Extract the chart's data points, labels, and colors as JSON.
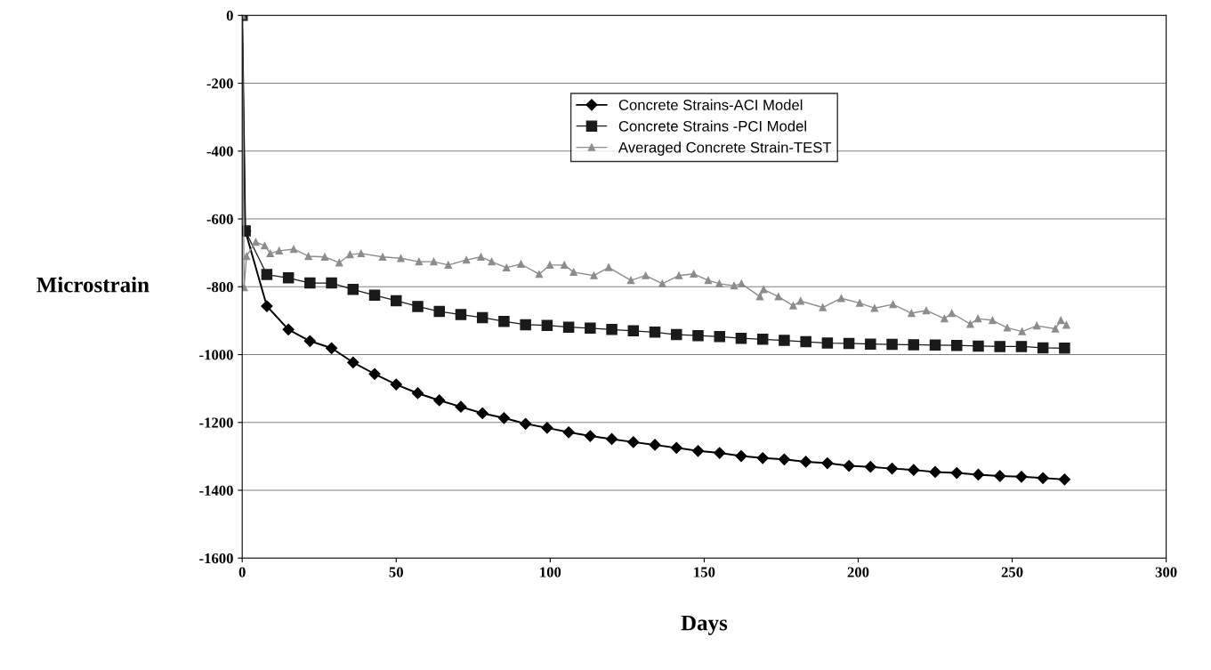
{
  "chart_data": {
    "type": "line",
    "xlabel": "Days",
    "ylabel": "Microstrain",
    "xlim": [
      0,
      300
    ],
    "xticks": [
      0,
      50,
      100,
      150,
      200,
      250,
      300
    ],
    "ylim": [
      -1600,
      0
    ],
    "yticks": [
      -1600,
      -1400,
      -1200,
      -1000,
      -800,
      -600,
      -400,
      -200,
      0
    ],
    "grid": "y",
    "legend": "top",
    "series": [
      {
        "name": "Concrete Strains-ACI Model",
        "color": "#000000",
        "marker": "diamond",
        "line_style": "solid",
        "x": [
          0,
          1,
          8,
          15,
          22,
          29,
          36,
          43,
          50,
          57,
          64,
          71,
          78,
          85,
          92,
          99,
          106,
          113,
          120,
          127,
          134,
          141,
          148,
          155,
          162,
          169,
          176,
          183,
          190,
          197,
          204,
          211,
          218,
          225,
          232,
          239,
          246,
          253,
          260,
          267
        ],
        "values": [
          0,
          -635,
          -857,
          -926,
          -960,
          -981,
          -1023,
          -1057,
          -1088,
          -1114,
          -1135,
          -1154,
          -1173,
          -1187,
          -1204,
          -1216,
          -1229,
          -1240,
          -1249,
          -1258,
          -1266,
          -1275,
          -1284,
          -1290,
          -1299,
          -1305,
          -1309,
          -1316,
          -1320,
          -1328,
          -1331,
          -1336,
          -1340,
          -1346,
          -1349,
          -1354,
          -1358,
          -1360,
          -1364,
          -1368
        ]
      },
      {
        "name": "Concrete Strains -PCI Model",
        "color": "#1a1a1a",
        "marker": "square",
        "line_style": "solid",
        "x": [
          0,
          1,
          8,
          15,
          22,
          29,
          36,
          43,
          50,
          57,
          64,
          71,
          78,
          85,
          92,
          99,
          106,
          113,
          120,
          127,
          134,
          141,
          148,
          155,
          162,
          169,
          176,
          183,
          190,
          197,
          204,
          211,
          218,
          225,
          232,
          239,
          246,
          253,
          260,
          267
        ],
        "values": [
          0,
          -635,
          -764,
          -774,
          -789,
          -789,
          -808,
          -825,
          -841,
          -858,
          -873,
          -882,
          -891,
          -902,
          -912,
          -914,
          -919,
          -922,
          -926,
          -930,
          -934,
          -941,
          -944,
          -947,
          -952,
          -955,
          -958,
          -962,
          -966,
          -967,
          -969,
          -970,
          -971,
          -972,
          -973,
          -975,
          -976,
          -976,
          -980,
          -981
        ]
      },
      {
        "name": "Averaged Concrete Strain-TEST",
        "color": "#8c8c8c",
        "marker": "triangle",
        "line_style": "solid",
        "x": [
          0,
          0.6,
          1.4,
          4.4,
          7.3,
          9.1,
          12,
          16.7,
          21.5,
          26.8,
          31.5,
          35,
          38.6,
          45.6,
          51.5,
          57.4,
          62.2,
          66.9,
          72.8,
          77.5,
          81,
          85.8,
          90.5,
          96.4,
          99.9,
          104.6,
          107.6,
          114.2,
          119,
          126.2,
          131,
          136.4,
          141.8,
          146.6,
          151.3,
          154.9,
          159.7,
          162.1,
          168.1,
          169.3,
          174.1,
          178.9,
          181.3,
          188.5,
          194.5,
          200.5,
          205.3,
          211.3,
          217.3,
          222.1,
          228,
          230.4,
          236.4,
          238.9,
          243.6,
          248.4,
          253.2,
          258,
          264,
          265.8,
          267.6
        ],
        "values": [
          0,
          -802,
          -710,
          -668,
          -679,
          -702,
          -694,
          -689,
          -710,
          -712,
          -729,
          -705,
          -702,
          -712,
          -716,
          -726,
          -726,
          -736,
          -721,
          -712,
          -726,
          -744,
          -733,
          -763,
          -736,
          -736,
          -757,
          -767,
          -743,
          -781,
          -767,
          -791,
          -767,
          -762,
          -781,
          -791,
          -797,
          -791,
          -829,
          -808,
          -829,
          -856,
          -842,
          -861,
          -834,
          -848,
          -863,
          -852,
          -878,
          -870,
          -894,
          -878,
          -910,
          -894,
          -899,
          -921,
          -932,
          -915,
          -924,
          -899,
          -913
        ]
      }
    ]
  }
}
